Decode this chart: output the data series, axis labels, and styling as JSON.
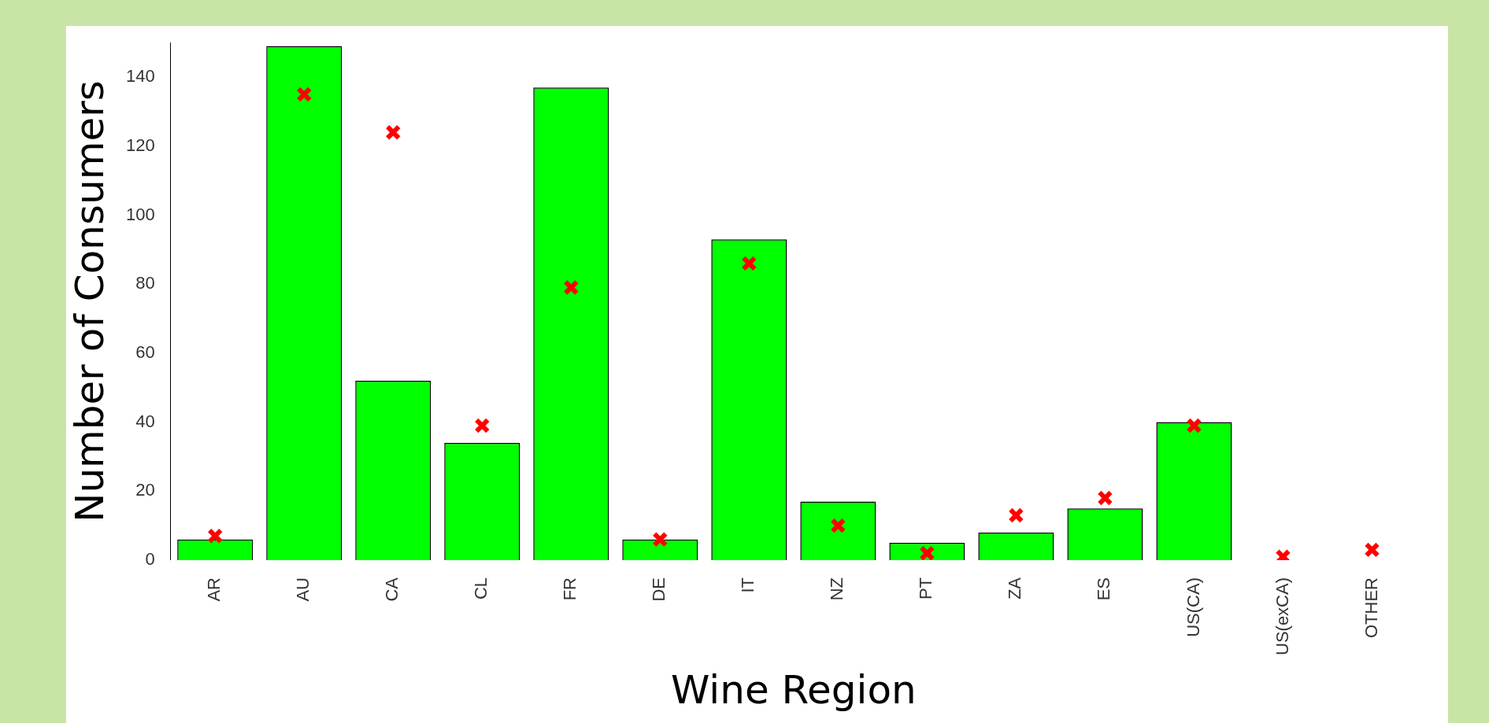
{
  "chart_data": {
    "type": "bar",
    "xlabel": "Wine Region",
    "ylabel": "Number of Consumers",
    "categories": [
      "AR",
      "AU",
      "CA",
      "CL",
      "FR",
      "DE",
      "IT",
      "NZ",
      "PT",
      "ZA",
      "ES",
      "US(CA)",
      "US(exCA)",
      "OTHER"
    ],
    "series": [
      {
        "color": "#00ff00",
        "values": [
          6,
          149,
          52,
          34,
          137,
          6,
          93,
          17,
          5,
          8,
          15,
          40,
          0,
          0
        ]
      },
      {
        "type": "scatter",
        "color": "#ff0000",
        "marker": "cross",
        "values": [
          7,
          135,
          124,
          39,
          79,
          6,
          86,
          10,
          2,
          13,
          18,
          39,
          1,
          3
        ]
      }
    ],
    "ylim": [
      0,
      150
    ],
    "yticks": [
      0,
      20,
      40,
      60,
      80,
      100,
      120,
      140
    ],
    "grid": false,
    "legend": false
  }
}
